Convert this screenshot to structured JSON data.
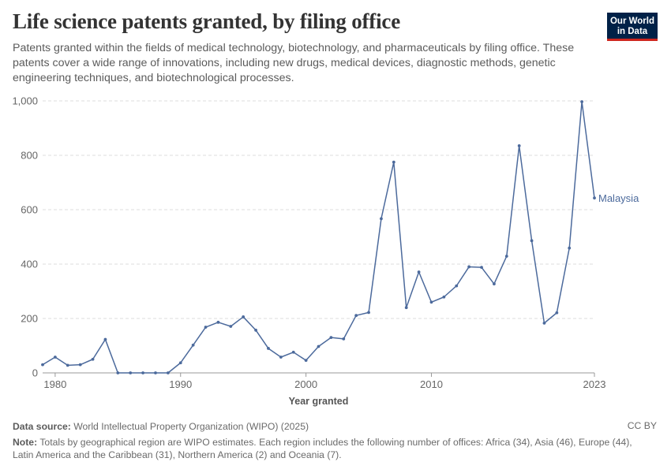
{
  "header": {
    "title": "Life science patents granted, by filing office",
    "subtitle": "Patents granted within the fields of medical technology, biotechnology, and pharmaceuticals by filing office. These patents cover a wide range of innovations, including new drugs, medical devices, diagnostic methods, genetic engineering techniques, and biotechnological processes."
  },
  "logo": {
    "line1": "Our World",
    "line2": "in Data"
  },
  "chart_data": {
    "type": "line",
    "title": "Life science patents granted, by filing office",
    "xlabel": "Year granted",
    "ylabel": "",
    "xlim": [
      1979,
      2023
    ],
    "ylim": [
      0,
      1000
    ],
    "x_ticks": [
      1980,
      1990,
      2000,
      2010,
      2023
    ],
    "y_ticks": [
      0,
      200,
      400,
      600,
      800,
      1000
    ],
    "y_tick_labels": [
      "0",
      "200",
      "400",
      "600",
      "800",
      "1,000"
    ],
    "grid": true,
    "series": [
      {
        "name": "Malaysia",
        "color": "#4c6a9c",
        "x": [
          1979,
          1980,
          1981,
          1982,
          1983,
          1984,
          1985,
          1986,
          1987,
          1988,
          1989,
          1990,
          1991,
          1992,
          1993,
          1994,
          1995,
          1996,
          1997,
          1998,
          1999,
          2000,
          2001,
          2002,
          2003,
          2004,
          2005,
          2006,
          2007,
          2008,
          2009,
          2010,
          2011,
          2012,
          2013,
          2014,
          2015,
          2016,
          2017,
          2018,
          2019,
          2020,
          2021,
          2022,
          2023
        ],
        "values": [
          30,
          58,
          28,
          30,
          50,
          123,
          0,
          0,
          0,
          0,
          0,
          37,
          102,
          168,
          186,
          171,
          206,
          157,
          90,
          58,
          76,
          46,
          97,
          130,
          125,
          211,
          222,
          567,
          775,
          240,
          371,
          260,
          279,
          320,
          390,
          388,
          327,
          429,
          835,
          486,
          183,
          221,
          459,
          997,
          643
        ]
      }
    ]
  },
  "footer": {
    "source_label": "Data source:",
    "source_text": "World Intellectual Property Organization (WIPO) (2025)",
    "license": "CC BY",
    "note_label": "Note:",
    "note_text": "Totals by geographical region are WIPO estimates. Each region includes the following number of offices: Africa (34), Asia (46), Europe (44), Latin America and the Caribbean (31), Northern America (2) and Oceania (7)."
  }
}
